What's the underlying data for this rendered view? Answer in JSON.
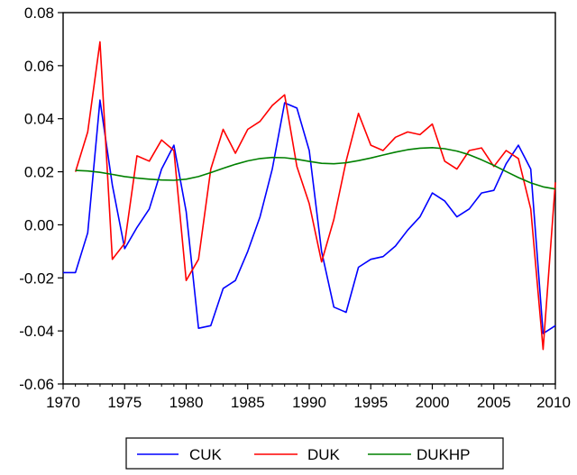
{
  "chart_data": {
    "type": "line",
    "title": "",
    "xlabel": "",
    "ylabel": "",
    "xlim": [
      1970,
      2010
    ],
    "ylim": [
      -0.06,
      0.08
    ],
    "x_ticks": [
      "1970",
      "1975",
      "1980",
      "1985",
      "1990",
      "1995",
      "2000",
      "2005",
      "2010"
    ],
    "y_ticks": [
      "0.08",
      "0.06",
      "0.04",
      "0.02",
      "0.00",
      "-0.02",
      "-0.04",
      "-0.06"
    ],
    "grid": false,
    "legend": "bottom",
    "series": [
      {
        "name": "CUK",
        "color": "#0000ff",
        "x": [
          1970,
          1971,
          1972,
          1973,
          1974,
          1975,
          1976,
          1977,
          1978,
          1979,
          1980,
          1981,
          1982,
          1983,
          1984,
          1985,
          1986,
          1987,
          1988,
          1989,
          1990,
          1991,
          1992,
          1993,
          1994,
          1995,
          1996,
          1997,
          1998,
          1999,
          2000,
          2001,
          2002,
          2003,
          2004,
          2005,
          2006,
          2007,
          2008,
          2009,
          2010
        ],
        "values": [
          -0.018,
          -0.018,
          -0.003,
          0.047,
          0.015,
          -0.009,
          -0.001,
          0.006,
          0.021,
          0.03,
          0.005,
          -0.039,
          -0.038,
          -0.024,
          -0.021,
          -0.01,
          0.003,
          0.021,
          0.046,
          0.044,
          0.028,
          -0.01,
          -0.031,
          -0.033,
          -0.016,
          -0.013,
          -0.012,
          -0.008,
          -0.002,
          0.003,
          0.012,
          0.009,
          0.003,
          0.006,
          0.012,
          0.013,
          0.023,
          0.03,
          0.021,
          -0.041,
          -0.038
        ]
      },
      {
        "name": "DUK",
        "color": "#ff0000",
        "x": [
          1971,
          1972,
          1973,
          1974,
          1975,
          1976,
          1977,
          1978,
          1979,
          1980,
          1981,
          1982,
          1983,
          1984,
          1985,
          1986,
          1987,
          1988,
          1989,
          1990,
          1991,
          1992,
          1993,
          1994,
          1995,
          1996,
          1997,
          1998,
          1999,
          2000,
          2001,
          2002,
          2003,
          2004,
          2005,
          2006,
          2007,
          2008,
          2009,
          2010
        ],
        "values": [
          0.02,
          0.035,
          0.069,
          -0.013,
          -0.007,
          0.026,
          0.024,
          0.032,
          0.028,
          -0.021,
          -0.013,
          0.021,
          0.036,
          0.027,
          0.036,
          0.039,
          0.045,
          0.049,
          0.022,
          0.008,
          -0.014,
          0.002,
          0.024,
          0.042,
          0.03,
          0.028,
          0.033,
          0.035,
          0.034,
          0.038,
          0.024,
          0.021,
          0.028,
          0.029,
          0.022,
          0.028,
          0.025,
          0.006,
          -0.047,
          0.016
        ]
      },
      {
        "name": "DUKHP",
        "color": "#008000",
        "x": [
          1971,
          1972,
          1973,
          1974,
          1975,
          1976,
          1977,
          1978,
          1979,
          1980,
          1981,
          1982,
          1983,
          1984,
          1985,
          1986,
          1987,
          1988,
          1989,
          1990,
          1991,
          1992,
          1993,
          1994,
          1995,
          1996,
          1997,
          1998,
          1999,
          2000,
          2001,
          2002,
          2003,
          2004,
          2005,
          2006,
          2007,
          2008,
          2009,
          2010
        ],
        "values": [
          0.0205,
          0.0203,
          0.0198,
          0.019,
          0.0182,
          0.0176,
          0.0172,
          0.0169,
          0.0168,
          0.0172,
          0.0182,
          0.0197,
          0.0213,
          0.0228,
          0.0241,
          0.025,
          0.0254,
          0.0253,
          0.0247,
          0.0239,
          0.0232,
          0.023,
          0.0234,
          0.0242,
          0.0252,
          0.0263,
          0.0274,
          0.0283,
          0.0289,
          0.0291,
          0.0287,
          0.0278,
          0.0264,
          0.0245,
          0.0224,
          0.0201,
          0.0178,
          0.0158,
          0.0143,
          0.0135
        ]
      }
    ]
  }
}
